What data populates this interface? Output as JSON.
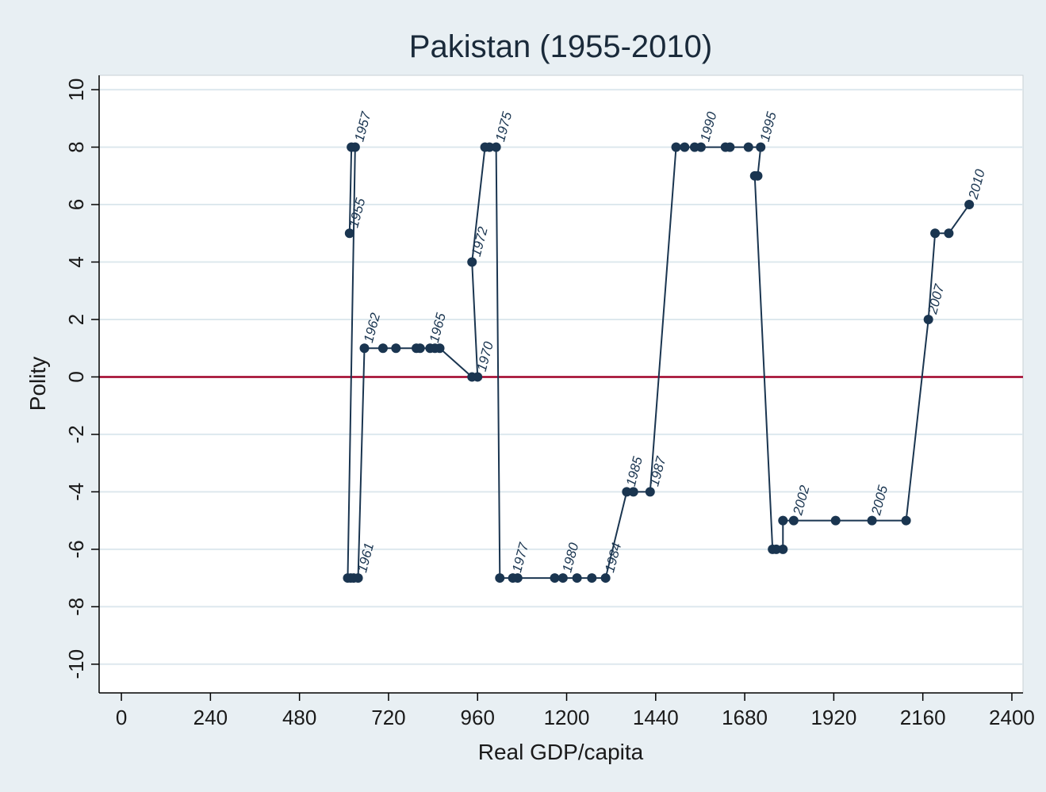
{
  "chart_data": {
    "type": "line",
    "title": "Pakistan (1955-2010)",
    "xlabel": "Real GDP/capita",
    "ylabel": "Polity",
    "xlim": [
      -60,
      2430
    ],
    "ylim": [
      -11,
      10.5
    ],
    "xticks": [
      0,
      240,
      480,
      720,
      960,
      1200,
      1440,
      1680,
      1920,
      2160,
      2400
    ],
    "yticks": [
      -10,
      -8,
      -6,
      -4,
      -2,
      0,
      2,
      4,
      6,
      8,
      10
    ],
    "grid": true,
    "reference_line": {
      "y": 0,
      "color": "#a00028"
    },
    "colors": {
      "series": "#1a3550",
      "background": "#e8eff3",
      "plot_bg": "#ffffff",
      "grid": "#dde8ee"
    },
    "series": [
      {
        "points": [
          {
            "x": 615,
            "y": 5,
            "label": "1955"
          },
          {
            "x": 620,
            "y": 8
          },
          {
            "x": 630,
            "y": 8,
            "label": "1957"
          },
          {
            "x": 610,
            "y": -7
          },
          {
            "x": 618,
            "y": -7
          },
          {
            "x": 626,
            "y": -7
          },
          {
            "x": 638,
            "y": -7,
            "label": "1961"
          },
          {
            "x": 655,
            "y": 1,
            "label": "1962"
          },
          {
            "x": 705,
            "y": 1
          },
          {
            "x": 740,
            "y": 1
          },
          {
            "x": 795,
            "y": 1
          },
          {
            "x": 805,
            "y": 1
          },
          {
            "x": 832,
            "y": 1,
            "label": "1965"
          },
          {
            "x": 845,
            "y": 1
          },
          {
            "x": 858,
            "y": 1
          },
          {
            "x": 945,
            "y": 0
          },
          {
            "x": 960,
            "y": 0,
            "label": "1970"
          },
          {
            "x": 945,
            "y": 4,
            "label": "1972"
          },
          {
            "x": 980,
            "y": 8
          },
          {
            "x": 992,
            "y": 8
          },
          {
            "x": 1010,
            "y": 8,
            "label": "1975"
          },
          {
            "x": 1020,
            "y": -7
          },
          {
            "x": 1055,
            "y": -7,
            "label": "1977"
          },
          {
            "x": 1068,
            "y": -7
          },
          {
            "x": 1168,
            "y": -7
          },
          {
            "x": 1190,
            "y": -7,
            "label": "1980"
          },
          {
            "x": 1228,
            "y": -7
          },
          {
            "x": 1268,
            "y": -7
          },
          {
            "x": 1305,
            "y": -7,
            "label": "1984"
          },
          {
            "x": 1362,
            "y": -4,
            "label": "1985"
          },
          {
            "x": 1380,
            "y": -4
          },
          {
            "x": 1425,
            "y": -4,
            "label": "1987"
          },
          {
            "x": 1495,
            "y": 8
          },
          {
            "x": 1518,
            "y": 8
          },
          {
            "x": 1545,
            "y": 8
          },
          {
            "x": 1562,
            "y": 8,
            "label": "1990"
          },
          {
            "x": 1628,
            "y": 8
          },
          {
            "x": 1640,
            "y": 8
          },
          {
            "x": 1690,
            "y": 8
          },
          {
            "x": 1723,
            "y": 8,
            "label": "1995"
          },
          {
            "x": 1715,
            "y": 7
          },
          {
            "x": 1707,
            "y": 7
          },
          {
            "x": 1755,
            "y": -6
          },
          {
            "x": 1765,
            "y": -6
          },
          {
            "x": 1783,
            "y": -6
          },
          {
            "x": 1783,
            "y": -5
          },
          {
            "x": 1812,
            "y": -5,
            "label": "2002"
          },
          {
            "x": 1925,
            "y": -5
          },
          {
            "x": 2023,
            "y": -5,
            "label": "2005"
          },
          {
            "x": 2115,
            "y": -5
          },
          {
            "x": 2175,
            "y": 2,
            "label": "2007"
          },
          {
            "x": 2193,
            "y": 5
          },
          {
            "x": 2230,
            "y": 5
          },
          {
            "x": 2285,
            "y": 6,
            "label": "2010"
          }
        ]
      }
    ]
  }
}
